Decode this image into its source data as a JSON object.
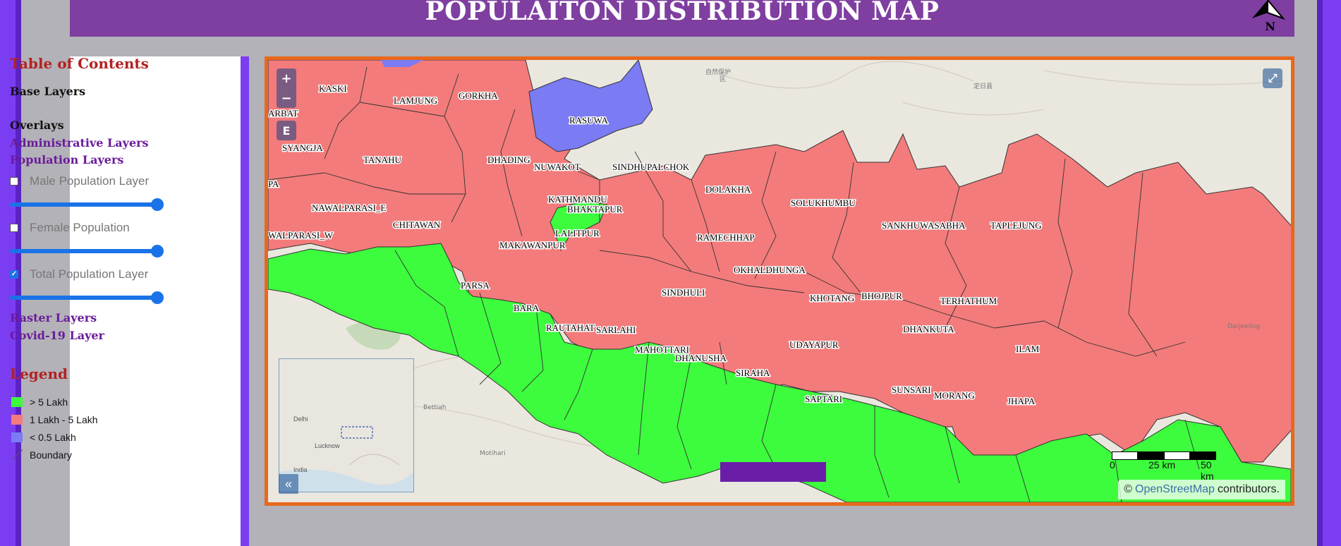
{
  "header": {
    "title": "POPULAITON DISTRIBUTION MAP",
    "north_label": "N"
  },
  "sidebar": {
    "toc_title": "Table of Contents",
    "base_layers": "Base Layers",
    "overlays": "Overlays",
    "administrative_layers": "Administrative Layers",
    "population_layers": "Population Layers",
    "layers": [
      {
        "label": "Male Population Layer",
        "checked": false,
        "opacity": 1.0
      },
      {
        "label": "Female Population",
        "checked": false,
        "opacity": 1.0
      },
      {
        "label": "Total Population Layer",
        "checked": true,
        "opacity": 1.0
      }
    ],
    "raster_layers": "Raster Layers",
    "covid_layer": "Covid-19 Layer",
    "legend_title": "Legend",
    "legend": [
      {
        "label": "> 5 Lakh",
        "color": "#3dfb3d"
      },
      {
        "label": "1 Lakh - 5 Lakh",
        "color": "#f47b7b"
      },
      {
        "label": "< 0.5 Lakh",
        "color": "#7b7bf4"
      },
      {
        "label": "Boundary",
        "color": "#555555"
      }
    ]
  },
  "map": {
    "zoom_in": "+",
    "zoom_out": "−",
    "zoom_extent": "E",
    "fullscreen": "⤢",
    "overview_toggle": "«",
    "attribution_prefix": "©",
    "attribution_link": "OpenStreetMap",
    "attribution_suffix": "contributors.",
    "scale_labels": [
      "0",
      "25 km",
      "50 km"
    ],
    "districts": [
      "KASKI",
      "LAMJUNG",
      "GORKHA",
      "RASUWA",
      "SYANGJA",
      "TANAHU",
      "DHADING",
      "NUWAKOT",
      "SINDHUPALCHOK",
      "DOLAKHA",
      "NAWALPARASI_E",
      "CHITAWAN",
      "KATHMANDU",
      "BHAKTAPUR",
      "LALITPUR",
      "MAKAWANPUR",
      "SOLUKHUMBU",
      "SANKHUWASABHA",
      "TAPLEJUNG",
      "RAMECHHAP",
      "OKHALDHUNGA",
      "NAWALPARASI_W",
      "PARSA",
      "BARA",
      "RAUTAHAT",
      "SARLAHI",
      "SINDHULI",
      "KHOTANG",
      "BHOJPUR",
      "TERHATHUM",
      "DHANKUTA",
      "MAHOTTARI",
      "DHANUSHA",
      "UDAYAPUR",
      "ILAM",
      "SIRAHA",
      "SAPTARI",
      "SUNSARI",
      "MORANG",
      "JHAPA",
      "PA",
      "ARBAT"
    ],
    "overview_places": [
      "Delhi",
      "Lucknow",
      "India"
    ],
    "colors": {
      "high": "#3dfb3d",
      "mid": "#f47b7b",
      "low": "#7b7bf4",
      "frame": "#e8681c"
    }
  }
}
